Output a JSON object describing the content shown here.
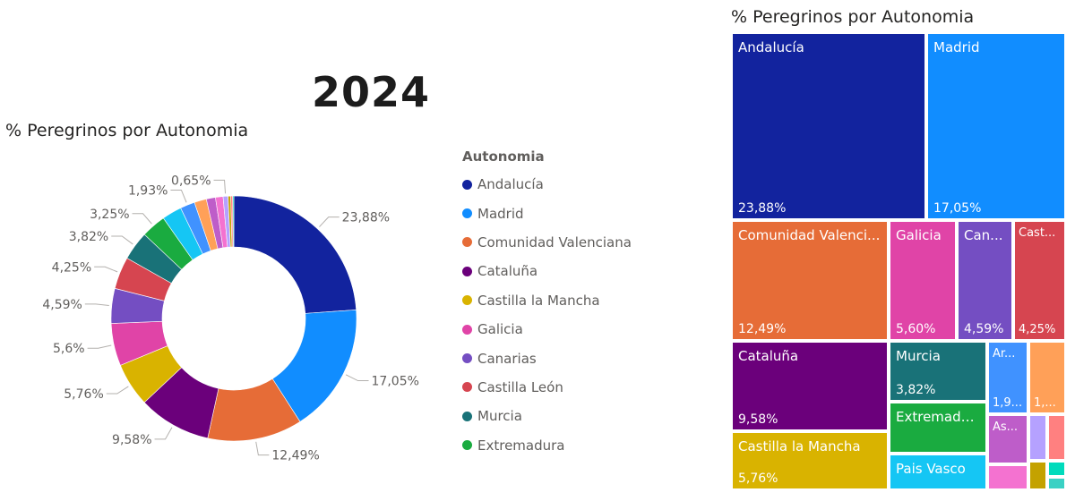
{
  "header": {
    "year": "2024"
  },
  "donut": {
    "title": "% Peregrinos por Autonomia"
  },
  "legend": {
    "title": "Autonomia",
    "items": [
      {
        "label": "Andalucía",
        "color": "#12239e"
      },
      {
        "label": "Madrid",
        "color": "#118dff"
      },
      {
        "label": "Comunidad Valenciana",
        "color": "#e66c37"
      },
      {
        "label": "Cataluña",
        "color": "#6b007b"
      },
      {
        "label": "Castilla la Mancha",
        "color": "#d9b300"
      },
      {
        "label": "Galicia",
        "color": "#e044a7"
      },
      {
        "label": "Canarias",
        "color": "#744ec2"
      },
      {
        "label": "Castilla León",
        "color": "#d64550"
      },
      {
        "label": "Murcia",
        "color": "#197278"
      },
      {
        "label": "Extremadura",
        "color": "#1aab40"
      }
    ]
  },
  "treemap": {
    "title": "% Peregrinos por Autonomia"
  },
  "chart_data": [
    {
      "type": "pie",
      "title": "% Peregrinos por Autonomia",
      "legend_position": "right",
      "slices": [
        {
          "name": "Andalucía",
          "value": 23.88,
          "label": "23,88%",
          "color": "#12239e"
        },
        {
          "name": "Madrid",
          "value": 17.05,
          "label": "17,05%",
          "color": "#118dff"
        },
        {
          "name": "Comunidad Valenciana",
          "value": 12.49,
          "label": "12,49%",
          "color": "#e66c37"
        },
        {
          "name": "Cataluña",
          "value": 9.58,
          "label": "9,58%",
          "color": "#6b007b"
        },
        {
          "name": "Castilla la Mancha",
          "value": 5.76,
          "label": "5,76%",
          "color": "#d9b300"
        },
        {
          "name": "Galicia",
          "value": 5.6,
          "label": "5,6%",
          "color": "#e044a7"
        },
        {
          "name": "Canarias",
          "value": 4.59,
          "label": "4,59%",
          "color": "#744ec2"
        },
        {
          "name": "Castilla León",
          "value": 4.25,
          "label": "4,25%",
          "color": "#d64550"
        },
        {
          "name": "Murcia",
          "value": 3.82,
          "label": "3,82%",
          "color": "#197278"
        },
        {
          "name": "Extremadura",
          "value": 3.25,
          "label": "3,25%",
          "color": "#1aab40"
        },
        {
          "name": "",
          "value": 2.6,
          "label": "",
          "color": "#15c6f4"
        },
        {
          "name": "",
          "value": 1.93,
          "label": "1,93%",
          "color": "#4092ff"
        },
        {
          "name": "",
          "value": 1.6,
          "label": "",
          "color": "#ffa058"
        },
        {
          "name": "",
          "value": 1.2,
          "label": "",
          "color": "#be5dc9"
        },
        {
          "name": "",
          "value": 1.0,
          "label": "",
          "color": "#f472d0"
        },
        {
          "name": "",
          "value": 0.65,
          "label": "0,65%",
          "color": "#b5a1ff"
        },
        {
          "name": "",
          "value": 0.35,
          "label": "",
          "color": "#c4a200"
        },
        {
          "name": "",
          "value": 0.25,
          "label": "",
          "color": "#ff8080"
        },
        {
          "name": "",
          "value": 0.15,
          "label": "",
          "color": "#00dbbc"
        }
      ]
    },
    {
      "type": "treemap",
      "title": "% Peregrinos por Autonomia",
      "tiles": [
        {
          "name": "Andalucía",
          "label": "Andalucía",
          "value_label": "23,88%",
          "color": "#12239e"
        },
        {
          "name": "Madrid",
          "label": "Madrid",
          "value_label": "17,05%",
          "color": "#118dff"
        },
        {
          "name": "Comunidad Valenciana",
          "label": "Comunidad Valenci...",
          "value_label": "12,49%",
          "color": "#e66c37"
        },
        {
          "name": "Galicia",
          "label": "Galicia",
          "value_label": "5,60%",
          "color": "#e044a7"
        },
        {
          "name": "Canarias",
          "label": "Can...",
          "value_label": "4,59%",
          "color": "#744ec2"
        },
        {
          "name": "Castilla León",
          "label": "Cast...",
          "value_label": "4,25%",
          "color": "#d64550"
        },
        {
          "name": "Cataluña",
          "label": "Cataluña",
          "value_label": "9,58%",
          "color": "#6b007b"
        },
        {
          "name": "Murcia",
          "label": "Murcia",
          "value_label": "3,82%",
          "color": "#197278"
        },
        {
          "name": "Aragón",
          "label": "Ar...",
          "value_label": "1,9...",
          "color": "#4092ff"
        },
        {
          "name": "",
          "label": "",
          "value_label": "1,...",
          "color": "#ffa058"
        },
        {
          "name": "Extremadura",
          "label": "Extremadura",
          "value_label": "",
          "color": "#1aab40"
        },
        {
          "name": "Asturias",
          "label": "As...",
          "value_label": "",
          "color": "#be5dc9"
        },
        {
          "name": "",
          "label": "",
          "value_label": "",
          "color": "#b5a1ff"
        },
        {
          "name": "",
          "label": "",
          "value_label": "",
          "color": "#ff8080"
        },
        {
          "name": "Pais Vasco",
          "label": "Pais Vasco",
          "value_label": "",
          "color": "#15c6f4"
        },
        {
          "name": "",
          "label": "",
          "value_label": "",
          "color": "#f472d0"
        },
        {
          "name": "",
          "label": "",
          "value_label": "",
          "color": "#c4a200"
        },
        {
          "name": "",
          "label": "",
          "value_label": "",
          "color": "#00dbbc"
        },
        {
          "name": "",
          "label": "",
          "value_label": "",
          "color": "#3ad1c4"
        },
        {
          "name": "Castilla la Mancha",
          "label": "Castilla la Mancha",
          "value_label": "5,76%",
          "color": "#d9b300"
        }
      ]
    }
  ]
}
